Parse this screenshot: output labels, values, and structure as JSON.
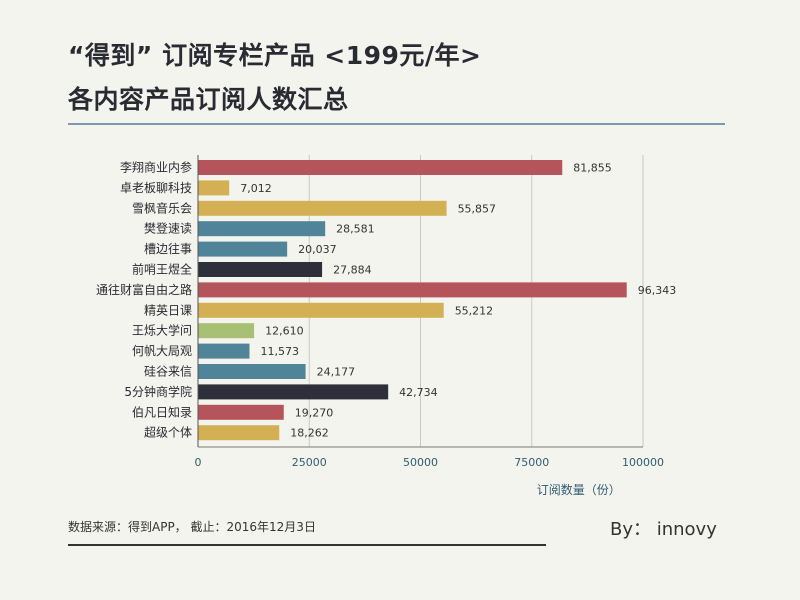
{
  "title_line1": "“得到” 订阅专栏产品 <199元/年>",
  "title_line2": "各内容产品订阅人数汇总",
  "footer": {
    "source": "数据来源：得到APP， 截止：2016年12月3日",
    "byline": "By： innovy"
  },
  "chart_data": {
    "type": "bar",
    "orientation": "horizontal",
    "categories": [
      "李翔商业内参",
      "卓老板聊科技",
      "雪枫音乐会",
      "樊登速读",
      "槽边往事",
      "前哨王煜全",
      "通往财富自由之路",
      "精英日课",
      "王烁大学问",
      "何帆大局观",
      "硅谷来信",
      "5分钟商学院",
      "伯凡日知录",
      "超级个体"
    ],
    "values": [
      81855,
      7012,
      55857,
      28581,
      20037,
      27884,
      96343,
      55212,
      12610,
      11573,
      24177,
      42734,
      19270,
      18262
    ],
    "value_labels": [
      "81,855",
      "7,012",
      "55,857",
      "28,581",
      "20,037",
      "27,884",
      "96,343",
      "55,212",
      "12,610",
      "11,573",
      "24,177",
      "42,734",
      "19,270",
      "18,262"
    ],
    "bar_colors": [
      "#b5545a",
      "#d3b053",
      "#d3b053",
      "#4f8499",
      "#4f8499",
      "#2e2f3a",
      "#b5545a",
      "#d3b053",
      "#a7c074",
      "#4f8499",
      "#4f8499",
      "#2e2f3a",
      "#b5545a",
      "#d3b053"
    ],
    "xlabel": "订阅数量（份）",
    "ylabel": "",
    "xlim": [
      0,
      100000
    ],
    "xticks": [
      0,
      25000,
      50000,
      75000,
      100000
    ],
    "xtick_labels": [
      "0",
      "25000",
      "50000",
      "75000",
      "100000"
    ],
    "grid": true
  }
}
